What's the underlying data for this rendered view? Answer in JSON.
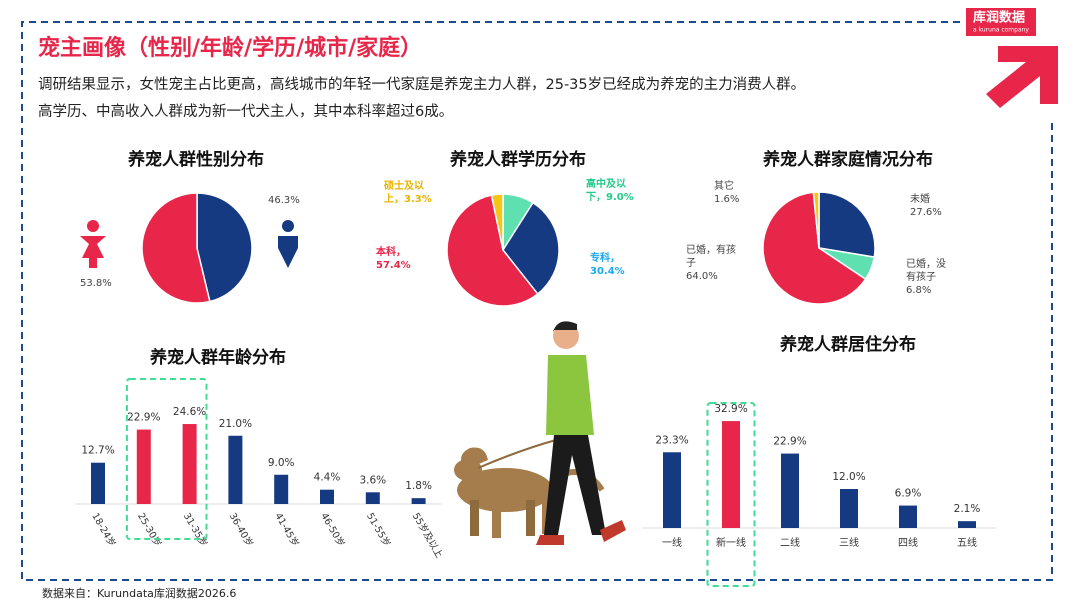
{
  "header": {
    "title": "宠主画像（性别/年龄/学历/城市/家庭）",
    "description": [
      "调研结果显示，女性宠主占比更高，高线城市的年轻一代家庭是养宠主力人群，25-35岁已经成为养宠的主力消费人群。",
      "高学历、中高收入人群成为新一代犬主人，其中本科率超过6成。"
    ]
  },
  "logo": {
    "name": "库润数据",
    "tagline": "a kuruna company"
  },
  "source": "数据来自：Kurundata库润数据2026.6",
  "chart_data": [
    {
      "type": "pie",
      "title": "养宠人群性别分布",
      "values": [
        46.3,
        53.8
      ],
      "value_labels": [
        "46.3%",
        "53.8%"
      ],
      "colors": [
        "#163a82",
        "#e8264a"
      ]
    },
    {
      "type": "pie",
      "title": "养宠人群学历分布",
      "values": [
        9.0,
        30.4,
        57.4,
        3.3
      ],
      "value_labels": [
        "高中及以下，9.0%",
        "专科，30.4%",
        "本科，57.4%",
        "硕士及以上，3.3%"
      ],
      "colors": [
        "#5fe0b0",
        "#163a82",
        "#e8264a",
        "#f5c518"
      ],
      "label_colors": [
        "#22c98a",
        "#1aa8ee",
        "#e8264a",
        "#e8b400"
      ]
    },
    {
      "type": "pie",
      "title": "养宠人群家庭情况分布",
      "categories": [
        "未婚",
        "已婚，没有孩子",
        "已婚，有孩子",
        "其它"
      ],
      "values": [
        27.6,
        6.8,
        64.0,
        1.6
      ],
      "value_labels": [
        "27.6%",
        "6.8%",
        "64.0%",
        "1.6%"
      ],
      "colors": [
        "#163a82",
        "#5fe0b0",
        "#e8264a",
        "#f5c518"
      ]
    },
    {
      "type": "bar",
      "title": "养宠人群年龄分布",
      "categories": [
        "18-24岁",
        "25-30岁",
        "31-35岁",
        "36-40岁",
        "41-45岁",
        "46-50岁",
        "51-55岁",
        "55岁及以上"
      ],
      "values": [
        12.7,
        22.9,
        24.6,
        21.0,
        9.0,
        4.4,
        3.6,
        1.8
      ],
      "value_labels": [
        "12.7%",
        "22.9%",
        "24.6%",
        "21.0%",
        "9.0%",
        "4.4%",
        "3.6%",
        "1.8%"
      ],
      "colors": [
        "#163a82",
        "#e8264a",
        "#e8264a",
        "#163a82",
        "#163a82",
        "#163a82",
        "#163a82",
        "#163a82"
      ],
      "highlight_color": "#e8264a"
    },
    {
      "type": "bar",
      "title": "养宠人群居住分布",
      "categories": [
        "一线",
        "新一线",
        "二线",
        "三线",
        "四线",
        "五线"
      ],
      "values": [
        23.3,
        32.9,
        22.9,
        12.0,
        6.9,
        2.1
      ],
      "value_labels": [
        "23.3%",
        "32.9%",
        "22.9%",
        "12.0%",
        "6.9%",
        "2.1%"
      ],
      "colors": [
        "#163a82",
        "#e8264a",
        "#163a82",
        "#163a82",
        "#163a82",
        "#163a82"
      ],
      "highlight_color": "#e8264a"
    }
  ]
}
